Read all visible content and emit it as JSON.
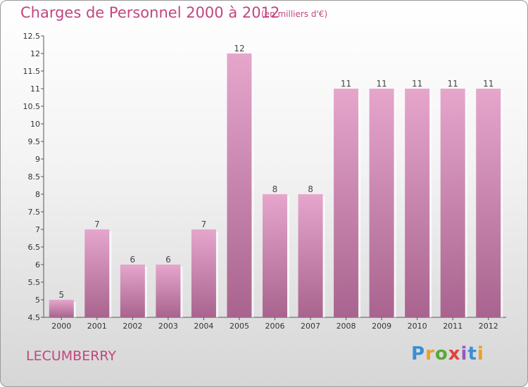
{
  "title": "Charges de Personnel 2000 à 2012",
  "subtitle": "(en milliers d'€)",
  "commune": "LECUMBERRY",
  "logo": {
    "text": "Proxiti",
    "colors": [
      "#3b8fd4",
      "#e8a02b",
      "#5aa83a",
      "#e0423a",
      "#8f5bc2",
      "#3b8fd4",
      "#e8a02b"
    ]
  },
  "chart_data": {
    "type": "bar",
    "title": "Charges de Personnel 2000 à 2012",
    "subtitle": "(en milliers d'€)",
    "categories": [
      "2000",
      "2001",
      "2002",
      "2003",
      "2004",
      "2005",
      "2006",
      "2007",
      "2008",
      "2009",
      "2010",
      "2011",
      "2012"
    ],
    "values": [
      5,
      7,
      6,
      6,
      7,
      12,
      8,
      8,
      11,
      11,
      11,
      11,
      11
    ],
    "ylim": [
      4.5,
      12.5
    ],
    "yticks": [
      "4.5",
      "5",
      "5.5",
      "6",
      "6.5",
      "7",
      "7.5",
      "8",
      "8.5",
      "9",
      "9.5",
      "10",
      "10.5",
      "11",
      "11.5",
      "12",
      "12.5"
    ],
    "xlabel": "",
    "ylabel": "",
    "grid": false,
    "bar_color": "#d88fb8"
  }
}
